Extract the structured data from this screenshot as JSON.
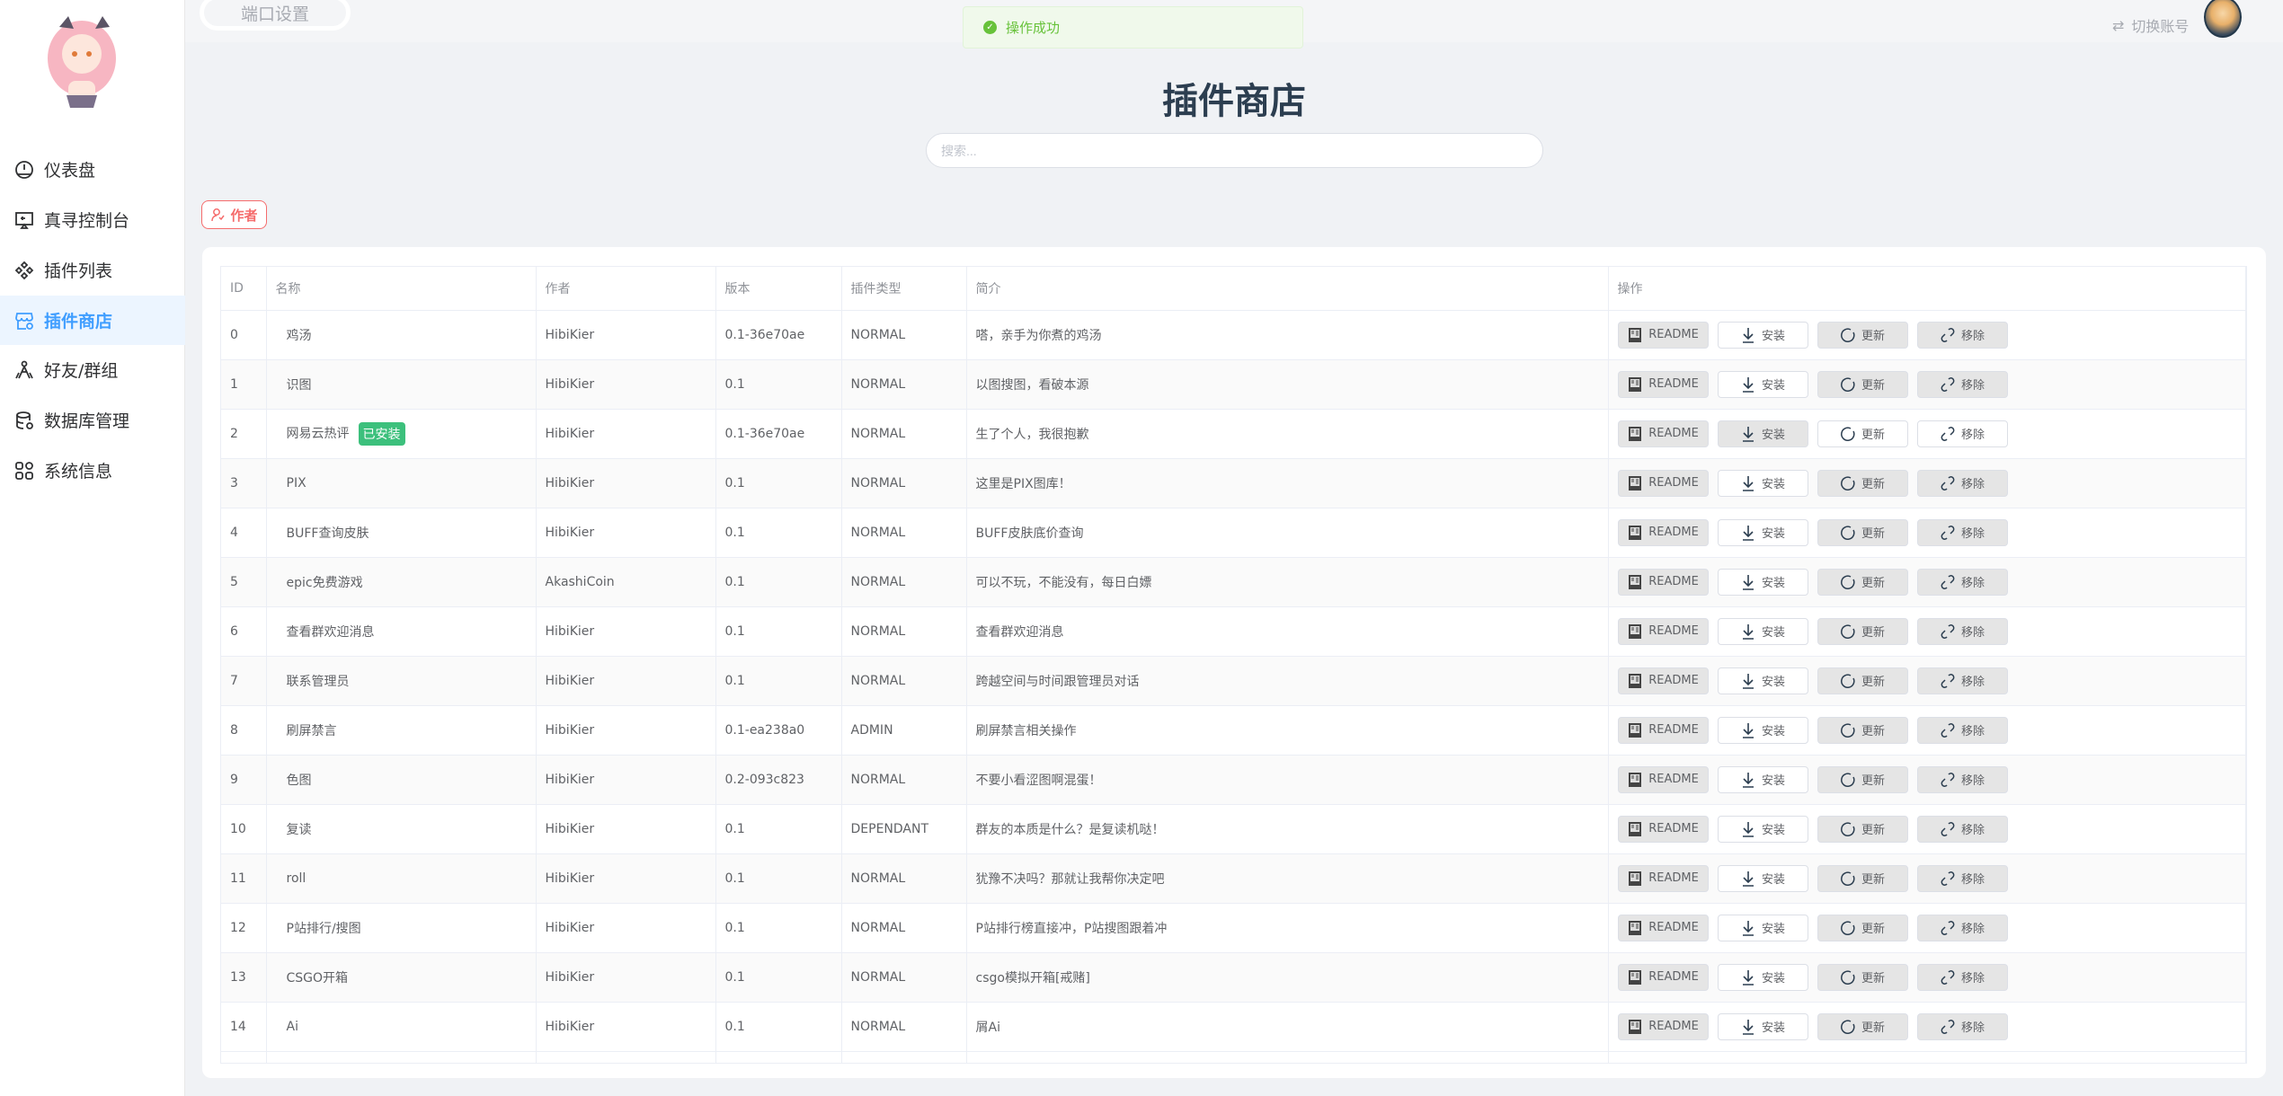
{
  "sidebar": {
    "items": [
      {
        "label": "仪表盘",
        "icon": "dashboard-icon"
      },
      {
        "label": "真寻控制台",
        "icon": "console-icon"
      },
      {
        "label": "插件列表",
        "icon": "plugins-icon"
      },
      {
        "label": "插件商店",
        "icon": "store-icon",
        "active": true
      },
      {
        "label": "好友/群组",
        "icon": "friends-icon"
      },
      {
        "label": "数据库管理",
        "icon": "database-icon"
      },
      {
        "label": "系统信息",
        "icon": "system-icon"
      }
    ]
  },
  "topbar": {
    "port_settings": "端口设置",
    "switch_account": "切换账号"
  },
  "toast": {
    "message": "操作成功",
    "color": "#67c23a"
  },
  "page": {
    "title": "插件商店",
    "search_placeholder": "搜索...",
    "author_filter": "作者"
  },
  "table": {
    "columns": [
      "ID",
      "名称",
      "作者",
      "版本",
      "插件类型",
      "简介",
      "操作"
    ],
    "installed_tag": "已安装",
    "actions": {
      "readme": "README",
      "install": "安装",
      "update": "更新",
      "remove": "移除"
    },
    "rows": [
      {
        "id": "0",
        "name": "鸡汤",
        "author": "HibiKier",
        "version": "0.1-36e70ae",
        "type": "NORMAL",
        "desc": "嗒，亲手为你煮的鸡汤",
        "installed": false
      },
      {
        "id": "1",
        "name": "识图",
        "author": "HibiKier",
        "version": "0.1",
        "type": "NORMAL",
        "desc": "以图搜图，看破本源",
        "installed": false
      },
      {
        "id": "2",
        "name": "网易云热评",
        "author": "HibiKier",
        "version": "0.1-36e70ae",
        "type": "NORMAL",
        "desc": "生了个人，我很抱歉",
        "installed": true
      },
      {
        "id": "3",
        "name": "PIX",
        "author": "HibiKier",
        "version": "0.1",
        "type": "NORMAL",
        "desc": "这里是PIX图库！",
        "installed": false
      },
      {
        "id": "4",
        "name": "BUFF查询皮肤",
        "author": "HibiKier",
        "version": "0.1",
        "type": "NORMAL",
        "desc": "BUFF皮肤底价查询",
        "installed": false
      },
      {
        "id": "5",
        "name": "epic免费游戏",
        "author": "AkashiCoin",
        "version": "0.1",
        "type": "NORMAL",
        "desc": "可以不玩，不能没有，每日白嫖",
        "installed": false
      },
      {
        "id": "6",
        "name": "查看群欢迎消息",
        "author": "HibiKier",
        "version": "0.1",
        "type": "NORMAL",
        "desc": "查看群欢迎消息",
        "installed": false
      },
      {
        "id": "7",
        "name": "联系管理员",
        "author": "HibiKier",
        "version": "0.1",
        "type": "NORMAL",
        "desc": "跨越空间与时间跟管理员对话",
        "installed": false
      },
      {
        "id": "8",
        "name": "刷屏禁言",
        "author": "HibiKier",
        "version": "0.1-ea238a0",
        "type": "ADMIN",
        "desc": "刷屏禁言相关操作",
        "installed": false
      },
      {
        "id": "9",
        "name": "色图",
        "author": "HibiKier",
        "version": "0.2-093c823",
        "type": "NORMAL",
        "desc": "不要小看涩图啊混蛋！",
        "installed": false
      },
      {
        "id": "10",
        "name": "复读",
        "author": "HibiKier",
        "version": "0.1",
        "type": "DEPENDANT",
        "desc": "群友的本质是什么？是复读机哒！",
        "installed": false
      },
      {
        "id": "11",
        "name": "roll",
        "author": "HibiKier",
        "version": "0.1",
        "type": "NORMAL",
        "desc": "犹豫不决吗？那就让我帮你决定吧",
        "installed": false
      },
      {
        "id": "12",
        "name": "P站排行/搜图",
        "author": "HibiKier",
        "version": "0.1",
        "type": "NORMAL",
        "desc": "P站排行榜直接冲，P站搜图跟着冲",
        "installed": false
      },
      {
        "id": "13",
        "name": "CSGO开箱",
        "author": "HibiKier",
        "version": "0.1",
        "type": "NORMAL",
        "desc": "csgo模拟开箱[戒赌]",
        "installed": false
      },
      {
        "id": "14",
        "name": "Ai",
        "author": "HibiKier",
        "version": "0.1",
        "type": "NORMAL",
        "desc": "屑Ai",
        "installed": false
      }
    ]
  }
}
